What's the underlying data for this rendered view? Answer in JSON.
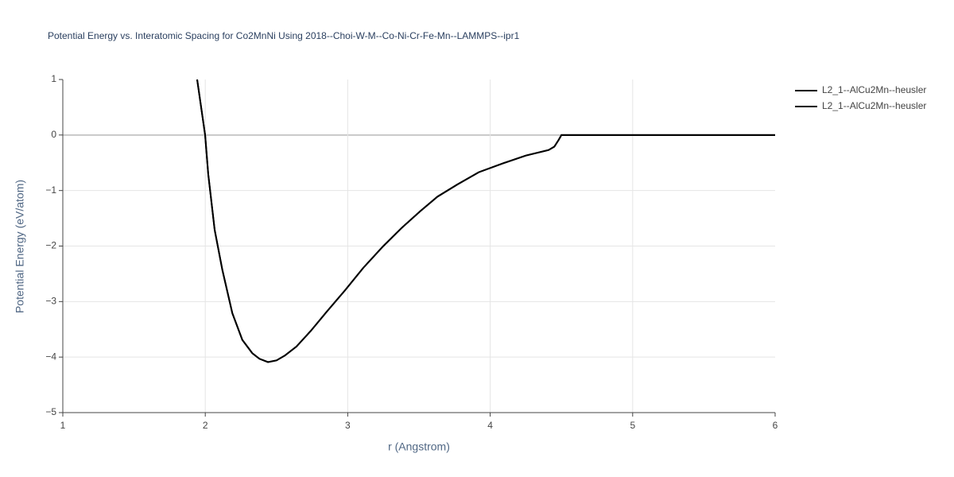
{
  "chart_data": {
    "type": "line",
    "title": "Potential Energy vs. Interatomic Spacing for Co2MnNi Using 2018--Choi-W-M--Co-Ni-Cr-Fe-Mn--LAMMPS--ipr1",
    "x_label": "r (Angstrom)",
    "y_label": "Potential Energy (eV/atom)",
    "x": [
      1.943,
      1.999,
      2.021,
      2.066,
      2.12,
      2.19,
      2.26,
      2.33,
      2.38,
      2.44,
      2.5,
      2.56,
      2.64,
      2.74,
      2.85,
      2.98,
      3.11,
      3.25,
      3.38,
      3.51,
      3.63,
      3.77,
      3.92,
      4.09,
      4.25,
      4.41,
      4.45,
      4.48,
      4.5,
      6
    ],
    "series": [
      {
        "name": "L2_1--AlCu2Mn--heusler",
        "color": "#000000",
        "values": [
          1,
          0,
          -0.71,
          -1.71,
          -2.43,
          -3.21,
          -3.69,
          -3.93,
          -4.03,
          -4.09,
          -4.06,
          -3.97,
          -3.81,
          -3.53,
          -3.19,
          -2.8,
          -2.39,
          -2.0,
          -1.67,
          -1.37,
          -1.11,
          -0.89,
          -0.67,
          -0.51,
          -0.37,
          -0.27,
          -0.21,
          -0.09,
          0,
          0
        ]
      },
      {
        "name": "L2_1--AlCu2Mn--heusler",
        "color": "#000000",
        "values": [
          1,
          0,
          -0.71,
          -1.71,
          -2.43,
          -3.21,
          -3.69,
          -3.93,
          -4.03,
          -4.09,
          -4.06,
          -3.97,
          -3.81,
          -3.53,
          -3.19,
          -2.8,
          -2.39,
          -2.0,
          -1.67,
          -1.37,
          -1.11,
          -0.89,
          -0.67,
          -0.51,
          -0.37,
          -0.27,
          -0.21,
          -0.09,
          0,
          0
        ]
      }
    ],
    "xlim": [
      1,
      6
    ],
    "xticks": [
      1,
      2,
      3,
      4,
      5,
      6
    ],
    "ylim": [
      -5,
      1
    ],
    "yticks": [
      {
        "value": -5,
        "label": "−5"
      },
      {
        "value": -4,
        "label": "−4"
      },
      {
        "value": -3,
        "label": "−3"
      },
      {
        "value": -2,
        "label": "−2"
      },
      {
        "value": -1,
        "label": "−1"
      },
      0,
      1
    ],
    "grid": true,
    "legend": "right"
  }
}
